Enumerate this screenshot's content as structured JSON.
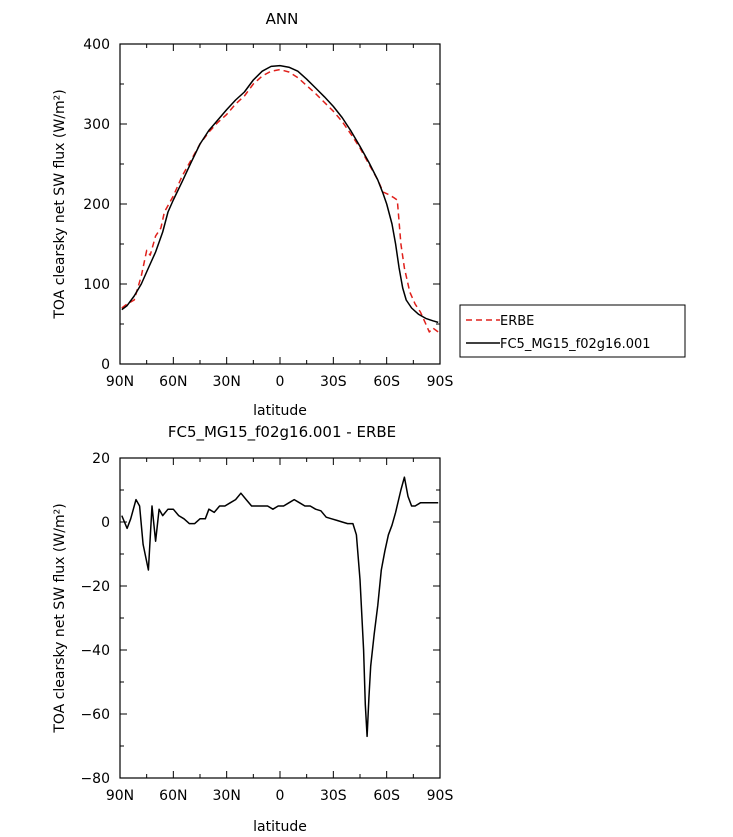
{
  "chart_data": [
    {
      "type": "line",
      "title": "ANN",
      "xlabel": "latitude",
      "ylabel": "TOA clearsky net SW flux (W/m²)",
      "xlim": [
        -90,
        90
      ],
      "ylim": [
        0,
        400
      ],
      "x_ticks": [
        -90,
        -60,
        -30,
        0,
        30,
        60,
        90
      ],
      "x_tick_labels": [
        "90N",
        "60N",
        "30N",
        "0",
        "30S",
        "60S",
        "90S"
      ],
      "y_ticks": [
        0,
        100,
        200,
        300,
        400
      ],
      "y_tick_labels": [
        "0",
        "100",
        "200",
        "300",
        "400"
      ],
      "legend_position": "right",
      "series": [
        {
          "name": "ERBE",
          "color": "#e0201b",
          "dash": "dashed",
          "points": [
            [
              -89,
              70
            ],
            [
              -86,
              75
            ],
            [
              -82,
              80
            ],
            [
              -78,
              110
            ],
            [
              -75,
              142
            ],
            [
              -73,
              136
            ],
            [
              -70,
              160
            ],
            [
              -67,
              170
            ],
            [
              -65,
              190
            ],
            [
              -60,
              210
            ],
            [
              -55,
              235
            ],
            [
              -50,
              255
            ],
            [
              -45,
              275
            ],
            [
              -40,
              290
            ],
            [
              -35,
              302
            ],
            [
              -30,
              312
            ],
            [
              -25,
              325
            ],
            [
              -20,
              335
            ],
            [
              -15,
              350
            ],
            [
              -10,
              360
            ],
            [
              -5,
              366
            ],
            [
              0,
              368
            ],
            [
              5,
              365
            ],
            [
              10,
              358
            ],
            [
              15,
              348
            ],
            [
              20,
              338
            ],
            [
              25,
              327
            ],
            [
              30,
              316
            ],
            [
              35,
              303
            ],
            [
              40,
              287
            ],
            [
              45,
              270
            ],
            [
              50,
              250
            ],
            [
              55,
              230
            ],
            [
              58,
              215
            ],
            [
              61,
              212
            ],
            [
              64,
              208
            ],
            [
              66,
              205
            ],
            [
              68,
              150
            ],
            [
              70,
              120
            ],
            [
              73,
              90
            ],
            [
              76,
              75
            ],
            [
              79,
              65
            ],
            [
              82,
              50
            ],
            [
              84,
              40
            ],
            [
              86,
              45
            ],
            [
              89,
              40
            ]
          ]
        },
        {
          "name": "FC5_MG15_f02g16.001",
          "color": "#000000",
          "dash": "solid",
          "points": [
            [
              -89,
              68
            ],
            [
              -86,
              73
            ],
            [
              -82,
              85
            ],
            [
              -78,
              100
            ],
            [
              -74,
              120
            ],
            [
              -70,
              140
            ],
            [
              -66,
              165
            ],
            [
              -63,
              190
            ],
            [
              -60,
              205
            ],
            [
              -55,
              228
            ],
            [
              -50,
              252
            ],
            [
              -45,
              275
            ],
            [
              -40,
              292
            ],
            [
              -35,
              305
            ],
            [
              -30,
              318
            ],
            [
              -25,
              330
            ],
            [
              -20,
              340
            ],
            [
              -15,
              355
            ],
            [
              -10,
              366
            ],
            [
              -5,
              372
            ],
            [
              0,
              373
            ],
            [
              5,
              371
            ],
            [
              10,
              366
            ],
            [
              15,
              356
            ],
            [
              20,
              345
            ],
            [
              25,
              334
            ],
            [
              30,
              322
            ],
            [
              35,
              308
            ],
            [
              40,
              291
            ],
            [
              45,
              272
            ],
            [
              50,
              252
            ],
            [
              55,
              230
            ],
            [
              58,
              213
            ],
            [
              60,
              200
            ],
            [
              63,
              175
            ],
            [
              65,
              150
            ],
            [
              67,
              120
            ],
            [
              69,
              95
            ],
            [
              71,
              80
            ],
            [
              74,
              70
            ],
            [
              78,
              62
            ],
            [
              82,
              57
            ],
            [
              86,
              54
            ],
            [
              89,
              52
            ]
          ]
        }
      ]
    },
    {
      "type": "line",
      "title": "FC5_MG15_f02g16.001 - ERBE",
      "xlabel": "latitude",
      "ylabel": "TOA clearsky net SW flux (W/m²)",
      "xlim": [
        -90,
        90
      ],
      "ylim": [
        -80,
        20
      ],
      "x_ticks": [
        -90,
        -60,
        -30,
        0,
        30,
        60,
        90
      ],
      "x_tick_labels": [
        "90N",
        "60N",
        "30N",
        "0",
        "30S",
        "60S",
        "90S"
      ],
      "y_ticks": [
        -80,
        -60,
        -40,
        -20,
        0,
        20
      ],
      "y_tick_labels": [
        "−80",
        "−60",
        "−40",
        "−20",
        "0",
        "20"
      ],
      "series": [
        {
          "color": "#000000",
          "dash": "solid",
          "points": [
            [
              -89,
              2
            ],
            [
              -86,
              -2
            ],
            [
              -84,
              1
            ],
            [
              -81,
              7
            ],
            [
              -79,
              5
            ],
            [
              -77,
              -7
            ],
            [
              -74,
              -15
            ],
            [
              -72,
              5
            ],
            [
              -70,
              -6
            ],
            [
              -68,
              4
            ],
            [
              -66,
              2
            ],
            [
              -63,
              4
            ],
            [
              -60,
              4
            ],
            [
              -57,
              2
            ],
            [
              -54,
              1
            ],
            [
              -51,
              -0.5
            ],
            [
              -48,
              -0.5
            ],
            [
              -45,
              1
            ],
            [
              -42,
              1
            ],
            [
              -40,
              4
            ],
            [
              -37,
              3
            ],
            [
              -34,
              5
            ],
            [
              -31,
              5
            ],
            [
              -28,
              6
            ],
            [
              -25,
              7
            ],
            [
              -22,
              9
            ],
            [
              -19,
              7
            ],
            [
              -16,
              5
            ],
            [
              -13,
              5
            ],
            [
              -10,
              5
            ],
            [
              -7,
              5
            ],
            [
              -4,
              4
            ],
            [
              -1,
              5
            ],
            [
              2,
              5
            ],
            [
              5,
              6
            ],
            [
              8,
              7
            ],
            [
              11,
              6
            ],
            [
              14,
              5
            ],
            [
              17,
              5
            ],
            [
              20,
              4
            ],
            [
              23,
              3.5
            ],
            [
              26,
              1.5
            ],
            [
              29,
              1
            ],
            [
              32,
              0.5
            ],
            [
              35,
              0
            ],
            [
              38,
              -0.5
            ],
            [
              41,
              -0.5
            ],
            [
              43,
              -4
            ],
            [
              45,
              -18
            ],
            [
              47,
              -40
            ],
            [
              48,
              -57
            ],
            [
              49,
              -67
            ],
            [
              50,
              -55
            ],
            [
              51,
              -45
            ],
            [
              53,
              -35
            ],
            [
              55,
              -26
            ],
            [
              57,
              -15
            ],
            [
              59,
              -9
            ],
            [
              61,
              -4
            ],
            [
              63,
              -1
            ],
            [
              65,
              3
            ],
            [
              68,
              10
            ],
            [
              70,
              14
            ],
            [
              72,
              8
            ],
            [
              74,
              5
            ],
            [
              76,
              5
            ],
            [
              79,
              6
            ],
            [
              82,
              6
            ],
            [
              85,
              6
            ],
            [
              87,
              6
            ],
            [
              89,
              6
            ]
          ]
        }
      ]
    }
  ]
}
